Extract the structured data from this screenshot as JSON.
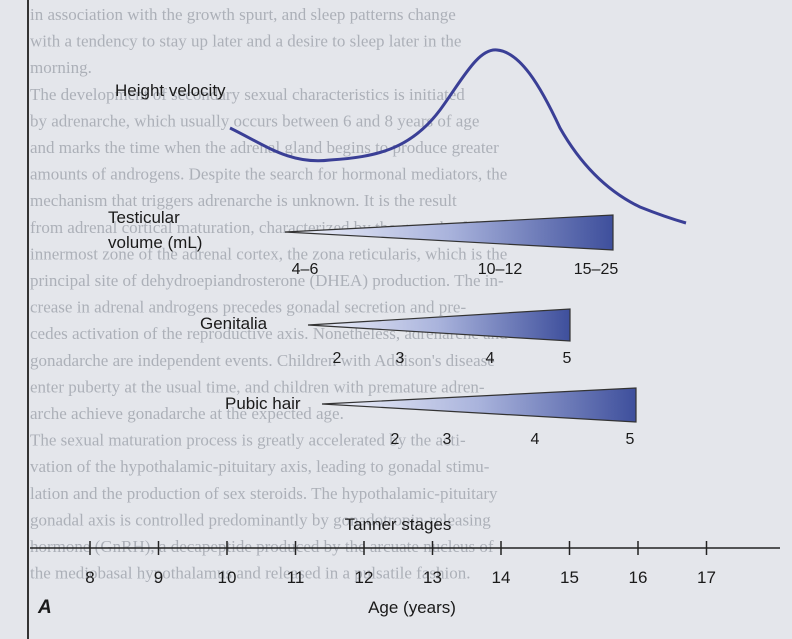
{
  "background_text": [
    "in association with the growth spurt, and sleep patterns change",
    "with a tendency to stay up later and a desire to sleep later in the",
    "morning.",
    "The development of secondary sexual characteristics is initiated",
    "by adrenarche, which usually occurs between 6 and 8 years of age",
    "and marks the time when the adrenal gland begins to produce greater",
    "amounts of androgens. Despite the search for hormonal mediators, the",
    "mechanism that triggers adrenarche is unknown. It is the result",
    "from adrenal cortical maturation, characterized by the growth of the",
    "innermost zone of the adrenal cortex, the zona reticularis, which is the",
    "principal site of dehydroepiandrosterone (DHEA) production. The in-",
    "crease in adrenal androgens precedes gonadal secretion and pre-",
    "cedes activation of the reproductive axis. Nonetheless, adrenarche and",
    "gonadarche are independent events. Children with Addison's disease",
    "enter puberty at the usual time, and children with premature adren-",
    "arche achieve gonadarche at the expected age.",
    "The sexual maturation process is greatly accelerated by the acti-",
    "vation of the hypothalamic-pituitary axis, leading to gonadal stimu-",
    "lation and the production of sex steroids. The hypothalamic-pituitary",
    "gonadal axis is controlled predominantly by gonadotropin-releasing",
    "hormone (GnRH), a decapeptide produced by the arcuate nucleus of",
    "the mediobasal hypothalamus and released in a pulsatile fashion."
  ],
  "height_velocity": {
    "label": "Height velocity"
  },
  "testicular": {
    "label": [
      "Testicular",
      "volume (mL)"
    ],
    "stages": [
      "4–6",
      "10–12",
      "15–25"
    ]
  },
  "genitalia": {
    "label": "Genitalia",
    "stages": [
      "2",
      "3",
      "4",
      "5"
    ]
  },
  "pubic_hair": {
    "label": "Pubic hair",
    "stages": [
      "2",
      "3",
      "4",
      "5"
    ]
  },
  "tanner_label": "Tanner stages",
  "axis": {
    "ticks": [
      "8",
      "9",
      "10",
      "11",
      "12",
      "13",
      "14",
      "15",
      "16",
      "17"
    ],
    "label": "Age (years)"
  },
  "panel_label": "A"
}
